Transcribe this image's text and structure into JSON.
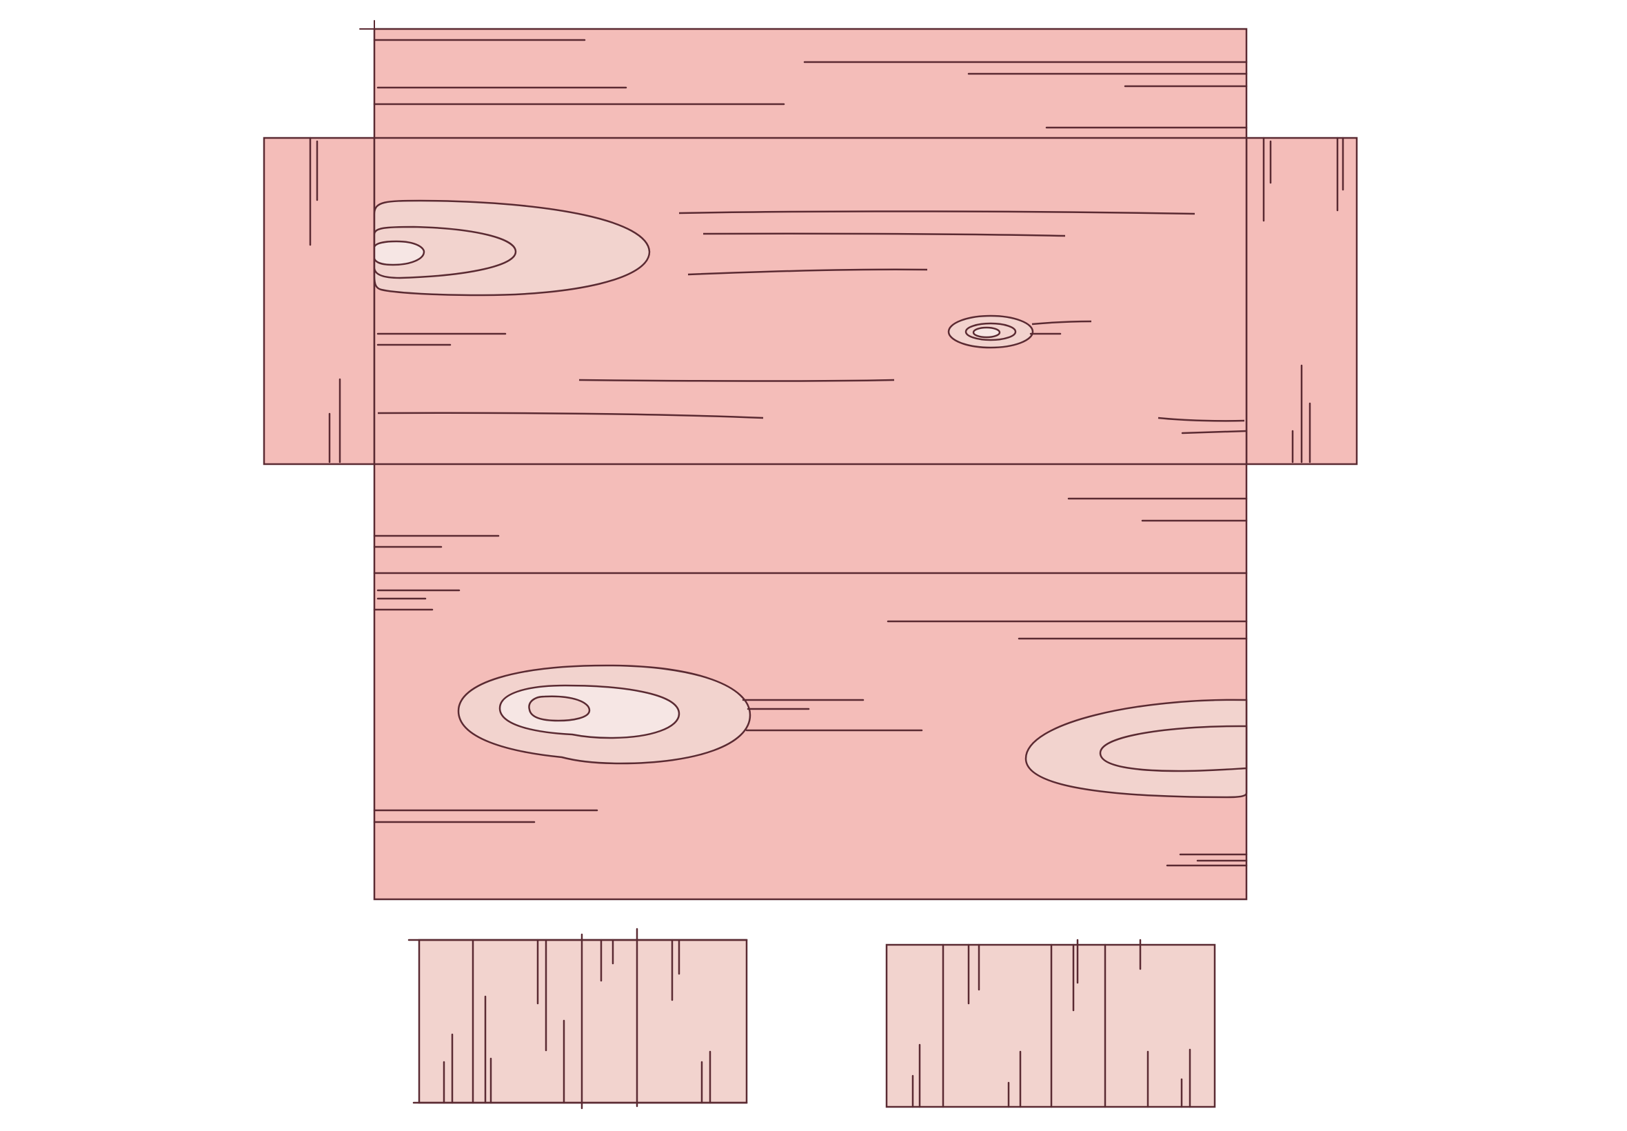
{
  "title": "",
  "palette": {
    "outline": "#5a2a32",
    "wood_main": "#f4bdb9",
    "wood_light": "#f2d3ce",
    "knot_light": "#f2d3ce",
    "knot_lighter": "#f6e6e4",
    "background": "#ffffff"
  },
  "pieces": [
    {
      "name": "box-net-main-panel"
    },
    {
      "name": "box-net-left-flap"
    },
    {
      "name": "box-net-right-flap"
    },
    {
      "name": "box-end-piece-left"
    },
    {
      "name": "box-end-piece-right"
    }
  ]
}
